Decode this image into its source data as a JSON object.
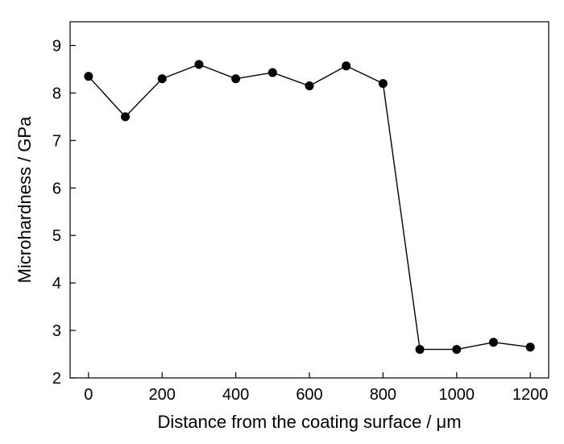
{
  "chart_data": {
    "type": "line",
    "title": "",
    "xlabel": "Distance from the coating surface / μm",
    "ylabel": "Microhardness / GPa",
    "xlim": [
      -50,
      1250
    ],
    "ylim": [
      2,
      9.5
    ],
    "xticks": [
      0,
      200,
      400,
      600,
      800,
      1000,
      1200
    ],
    "yticks": [
      2,
      3,
      4,
      5,
      6,
      7,
      8,
      9
    ],
    "grid": false,
    "legend": "none",
    "marker": "filled-circle",
    "colors": {
      "line": "#000000",
      "marker": "#000000",
      "axes": "#000000",
      "background": "#ffffff"
    },
    "series": [
      {
        "x": [
          0,
          100,
          200,
          300,
          400,
          500,
          600,
          700,
          800,
          900,
          1000,
          1100,
          1200
        ],
        "y": [
          8.35,
          7.5,
          8.3,
          8.6,
          8.3,
          8.43,
          8.15,
          8.57,
          8.2,
          2.6,
          2.6,
          2.75,
          2.65
        ]
      }
    ]
  }
}
